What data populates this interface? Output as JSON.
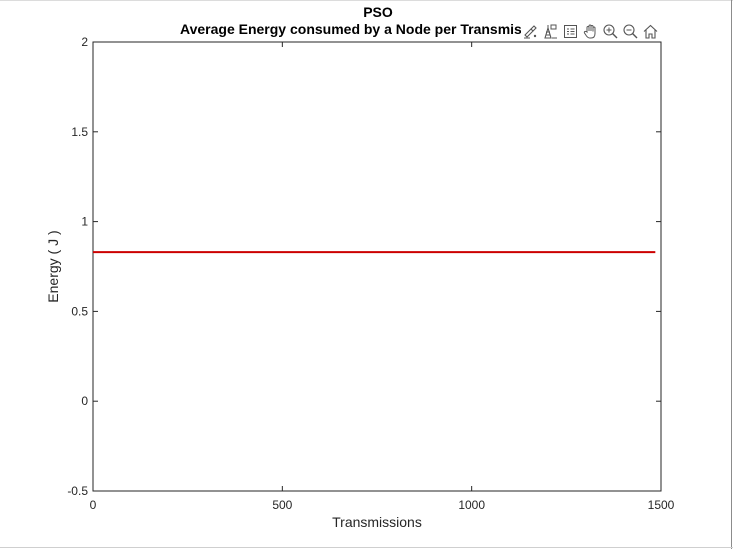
{
  "figure": {
    "title": "PSO",
    "subtitle": "Average Energy consumed by a Node per Transmission"
  },
  "toolbar": {
    "items": [
      {
        "name": "brush-data-icon",
        "tooltip": ""
      },
      {
        "name": "data-cursor-icon",
        "tooltip": ""
      },
      {
        "name": "legend-icon",
        "tooltip": ""
      },
      {
        "name": "pan-icon",
        "tooltip": ""
      },
      {
        "name": "zoom-in-icon",
        "tooltip": ""
      },
      {
        "name": "zoom-out-icon",
        "tooltip": ""
      },
      {
        "name": "home-icon",
        "tooltip": ""
      }
    ]
  },
  "chart_data": {
    "type": "line",
    "title": "PSO",
    "subtitle": "Average Energy consumed by a Node per Transmission",
    "xlabel": "Transmissions",
    "ylabel": "Energy ( J )",
    "xlim": [
      0,
      1500
    ],
    "ylim": [
      -0.5,
      2
    ],
    "xticks": [
      0,
      500,
      1000,
      1500
    ],
    "xtick_labels": [
      "0",
      "500",
      "1000",
      "1500"
    ],
    "yticks": [
      -0.5,
      0,
      0.5,
      1,
      1.5,
      2
    ],
    "ytick_labels": [
      "-0.5",
      "0",
      "0.5",
      "1",
      "1.5",
      "2"
    ],
    "grid": false,
    "series": [
      {
        "color": "#cc0000",
        "x": [
          0,
          1485
        ],
        "y": [
          0.83,
          0.83
        ]
      }
    ]
  }
}
